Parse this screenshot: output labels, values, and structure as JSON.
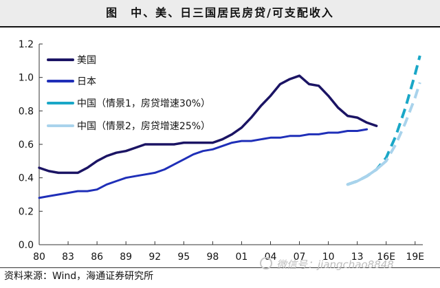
{
  "header": {
    "title": "图　中、美、日三国居民房贷/可支配收入"
  },
  "footer": {
    "source": "资料来源：Wind，海通证券研究所"
  },
  "watermark": {
    "text": "微信号：jiangchao8848"
  },
  "colors": {
    "us": "#1b1464",
    "jp": "#1f2fb8",
    "cn1": "#1aa7c7",
    "cn2": "#a9d3ec",
    "axis": "#333333",
    "title_band": "#ececec"
  },
  "chart_data": {
    "type": "line",
    "title": "图　中、美、日三国居民房贷/可支配收入",
    "xlabel": "",
    "ylabel": "",
    "ylim": [
      0,
      1.2
    ],
    "xlim": [
      1980,
      2019.8
    ],
    "grid": false,
    "legend_position": "top-left",
    "y_ticks": [
      {
        "value": 0.0,
        "label": "0.0"
      },
      {
        "value": 0.2,
        "label": "0.2"
      },
      {
        "value": 0.4,
        "label": "0.4"
      },
      {
        "value": 0.6,
        "label": "0.6"
      },
      {
        "value": 0.8,
        "label": "0.8"
      },
      {
        "value": 1.0,
        "label": "1.0"
      },
      {
        "value": 1.2,
        "label": "1.2"
      }
    ],
    "x_ticks": [
      {
        "value": 1980,
        "label": "80"
      },
      {
        "value": 1983,
        "label": "83"
      },
      {
        "value": 1986,
        "label": "86"
      },
      {
        "value": 1989,
        "label": "89"
      },
      {
        "value": 1992,
        "label": "92"
      },
      {
        "value": 1995,
        "label": "95"
      },
      {
        "value": 1998,
        "label": "98"
      },
      {
        "value": 2001,
        "label": "01"
      },
      {
        "value": 2004,
        "label": "04"
      },
      {
        "value": 2007,
        "label": "07"
      },
      {
        "value": 2010,
        "label": "10"
      },
      {
        "value": 2013,
        "label": "13"
      },
      {
        "value": 2016,
        "label": "16E"
      },
      {
        "value": 2019,
        "label": "19E"
      }
    ],
    "series": [
      {
        "name": "美国",
        "key": "us",
        "style": "solid",
        "x": [
          1980,
          1981,
          1982,
          1983,
          1984,
          1985,
          1986,
          1987,
          1988,
          1989,
          1990,
          1991,
          1992,
          1993,
          1994,
          1995,
          1996,
          1997,
          1998,
          1999,
          2000,
          2001,
          2002,
          2003,
          2004,
          2005,
          2006,
          2007,
          2008,
          2009,
          2010,
          2011,
          2012,
          2013,
          2014,
          2015
        ],
        "y": [
          0.46,
          0.44,
          0.43,
          0.43,
          0.43,
          0.46,
          0.5,
          0.53,
          0.55,
          0.56,
          0.58,
          0.6,
          0.6,
          0.6,
          0.6,
          0.61,
          0.61,
          0.61,
          0.61,
          0.63,
          0.66,
          0.7,
          0.76,
          0.83,
          0.89,
          0.96,
          0.99,
          1.01,
          0.96,
          0.95,
          0.89,
          0.82,
          0.77,
          0.76,
          0.73,
          0.71
        ]
      },
      {
        "name": "日本",
        "key": "jp",
        "style": "solid",
        "x": [
          1980,
          1981,
          1982,
          1983,
          1984,
          1985,
          1986,
          1987,
          1988,
          1989,
          1990,
          1991,
          1992,
          1993,
          1994,
          1995,
          1996,
          1997,
          1998,
          1999,
          2000,
          2001,
          2002,
          2003,
          2004,
          2005,
          2006,
          2007,
          2008,
          2009,
          2010,
          2011,
          2012,
          2013,
          2014
        ],
        "y": [
          0.28,
          0.29,
          0.3,
          0.31,
          0.32,
          0.32,
          0.33,
          0.36,
          0.38,
          0.4,
          0.41,
          0.42,
          0.43,
          0.45,
          0.48,
          0.51,
          0.54,
          0.56,
          0.57,
          0.59,
          0.61,
          0.62,
          0.62,
          0.63,
          0.64,
          0.64,
          0.65,
          0.65,
          0.66,
          0.66,
          0.67,
          0.67,
          0.68,
          0.68,
          0.69
        ]
      },
      {
        "name": "中国（情景1，房贷增速30%）",
        "key": "cn1",
        "style": "dashed",
        "x": [
          2012,
          2013,
          2014,
          2015,
          2016,
          2017,
          2018,
          2019,
          2019.5
        ],
        "y": [
          0.36,
          0.38,
          0.41,
          0.45,
          0.52,
          0.65,
          0.82,
          1.02,
          1.13
        ]
      },
      {
        "name": "中国（情景2，房贷增速25%）",
        "key": "cn2",
        "style": "mixed",
        "solid_until": 2015.5,
        "x": [
          2012,
          2013,
          2014,
          2015,
          2016,
          2017,
          2018,
          2019,
          2019.5
        ],
        "y": [
          0.36,
          0.38,
          0.41,
          0.45,
          0.5,
          0.6,
          0.73,
          0.88,
          0.97
        ]
      }
    ]
  }
}
